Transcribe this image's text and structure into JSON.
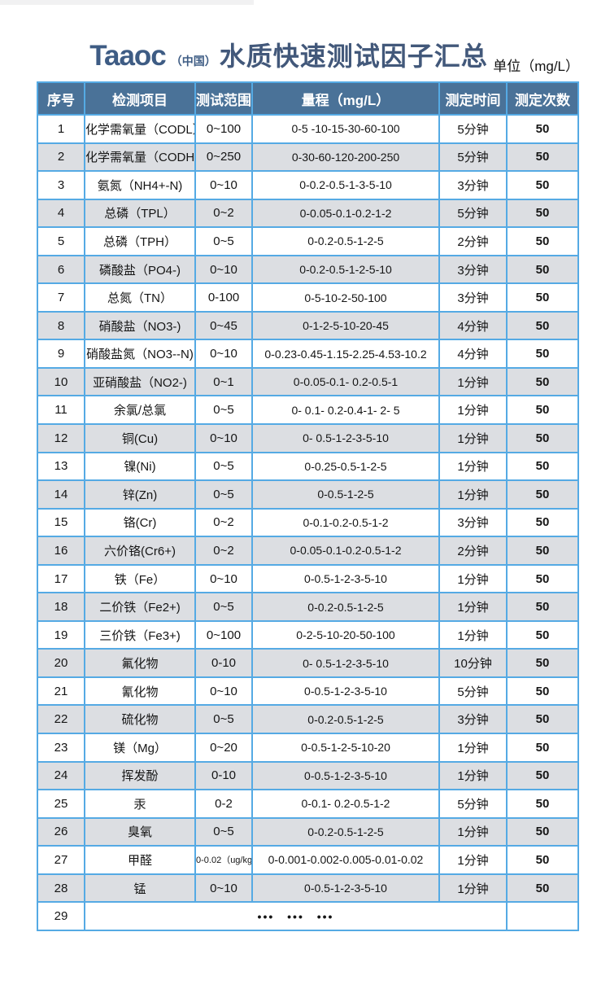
{
  "page": {
    "brand": "Taaoc",
    "brand_region": "（中国）",
    "title": "水质快速测试因子汇总",
    "unit_label": "单位（mg/L）"
  },
  "colors": {
    "header_bg": "#4a7298",
    "grid_border": "#55aae4",
    "row_alt_bg": "#dcdee2",
    "title_color": "#3e5c84"
  },
  "table": {
    "columns": [
      "序号",
      "检测项目",
      "测试范围",
      "量程（mg/L）",
      "测定时间",
      "测定次数"
    ],
    "rows": [
      {
        "no": "1",
        "item": "化学需氧量（CODL）",
        "range": "0~100",
        "scale": "0-5 -10-15-30-60-100",
        "time": "5分钟",
        "count": "50"
      },
      {
        "no": "2",
        "item": "化学需氧量（CODH）",
        "range": "0~250",
        "scale": "0-30-60-120-200-250",
        "time": "5分钟",
        "count": "50"
      },
      {
        "no": "3",
        "item": "氨氮（NH4+-N)",
        "range": "0~10",
        "scale": "0-0.2-0.5-1-3-5-10",
        "time": "3分钟",
        "count": "50"
      },
      {
        "no": "4",
        "item": "总磷（TPL）",
        "range": "0~2",
        "scale": "0-0.05-0.1-0.2-1-2",
        "time": "5分钟",
        "count": "50"
      },
      {
        "no": "5",
        "item": "总磷（TPH）",
        "range": "0~5",
        "scale": "0-0.2-0.5-1-2-5",
        "time": "2分钟",
        "count": "50"
      },
      {
        "no": "6",
        "item": "磷酸盐（PO4-)",
        "range": "0~10",
        "scale": "0-0.2-0.5-1-2-5-10",
        "time": "3分钟",
        "count": "50"
      },
      {
        "no": "7",
        "item": "总氮（TN）",
        "range": "0-100",
        "scale": "0-5-10-2-50-100",
        "time": "3分钟",
        "count": "50"
      },
      {
        "no": "8",
        "item": "硝酸盐（NO3-)",
        "range": "0~45",
        "scale": "0-1-2-5-10-20-45",
        "time": "4分钟",
        "count": "50"
      },
      {
        "no": "9",
        "item": "硝酸盐氮（NO3--N)",
        "range": "0~10",
        "scale": "0-0.23-0.45-1.15-2.25-4.53-10.2",
        "time": "4分钟",
        "count": "50"
      },
      {
        "no": "10",
        "item": "亚硝酸盐（NO2-)",
        "range": "0~1",
        "scale": "0-0.05-0.1- 0.2-0.5-1",
        "time": "1分钟",
        "count": "50"
      },
      {
        "no": "11",
        "item": "余氯/总氯",
        "range": "0~5",
        "scale": "0- 0.1- 0.2-0.4-1- 2- 5",
        "time": "1分钟",
        "count": "50"
      },
      {
        "no": "12",
        "item": "铜(Cu)",
        "range": "0~10",
        "scale": "0- 0.5-1-2-3-5-10",
        "time": "1分钟",
        "count": "50"
      },
      {
        "no": "13",
        "item": "镍(Ni)",
        "range": "0~5",
        "scale": "0-0.25-0.5-1-2-5",
        "time": "1分钟",
        "count": "50"
      },
      {
        "no": "14",
        "item": "锌(Zn)",
        "range": "0~5",
        "scale": "0-0.5-1-2-5",
        "time": "1分钟",
        "count": "50"
      },
      {
        "no": "15",
        "item": "铬(Cr)",
        "range": "0~2",
        "scale": "0-0.1-0.2-0.5-1-2",
        "time": "3分钟",
        "count": "50"
      },
      {
        "no": "16",
        "item": "六价铬(Cr6+)",
        "range": "0~2",
        "scale": "0-0.05-0.1-0.2-0.5-1-2",
        "time": "2分钟",
        "count": "50"
      },
      {
        "no": "17",
        "item": "铁（Fe）",
        "range": "0~10",
        "scale": "0-0.5-1-2-3-5-10",
        "time": "1分钟",
        "count": "50"
      },
      {
        "no": "18",
        "item": "二价铁（Fe2+)",
        "range": "0~5",
        "scale": "0-0.2-0.5-1-2-5",
        "time": "1分钟",
        "count": "50"
      },
      {
        "no": "19",
        "item": "三价铁（Fe3+)",
        "range": "0~100",
        "scale": "0-2-5-10-20-50-100",
        "time": "1分钟",
        "count": "50"
      },
      {
        "no": "20",
        "item": "氟化物",
        "range": "0-10",
        "scale": "0- 0.5-1-2-3-5-10",
        "time": "10分钟",
        "count": "50"
      },
      {
        "no": "21",
        "item": "氰化物",
        "range": "0~10",
        "scale": "0-0.5-1-2-3-5-10",
        "time": "5分钟",
        "count": "50"
      },
      {
        "no": "22",
        "item": "硫化物",
        "range": "0~5",
        "scale": "0-0.2-0.5-1-2-5",
        "time": "3分钟",
        "count": "50"
      },
      {
        "no": "23",
        "item": "镁（Mg）",
        "range": "0~20",
        "scale": "0-0.5-1-2-5-10-20",
        "time": "1分钟",
        "count": "50"
      },
      {
        "no": "24",
        "item": "挥发酚",
        "range": "0-10",
        "scale": "0-0.5-1-2-3-5-10",
        "time": "1分钟",
        "count": "50"
      },
      {
        "no": "25",
        "item": "汞",
        "range": "0-2",
        "scale": "0-0.1- 0.2-0.5-1-2",
        "time": "5分钟",
        "count": "50"
      },
      {
        "no": "26",
        "item": "臭氧",
        "range": "0~5",
        "scale": "0-0.2-0.5-1-2-5",
        "time": "1分钟",
        "count": "50"
      },
      {
        "no": "27",
        "item": "甲醛",
        "range": "0-0.02（ug/kg)",
        "scale": "0-0.001-0.002-0.005-0.01-0.02",
        "time": "1分钟",
        "count": "50"
      },
      {
        "no": "28",
        "item": "锰",
        "range": "0~10",
        "scale": "0-0.5-1-2-3-5-10",
        "time": "1分钟",
        "count": "50"
      }
    ],
    "ellipsis_row": {
      "no": "29",
      "dots": "••• ••• •••",
      "count": ""
    }
  }
}
